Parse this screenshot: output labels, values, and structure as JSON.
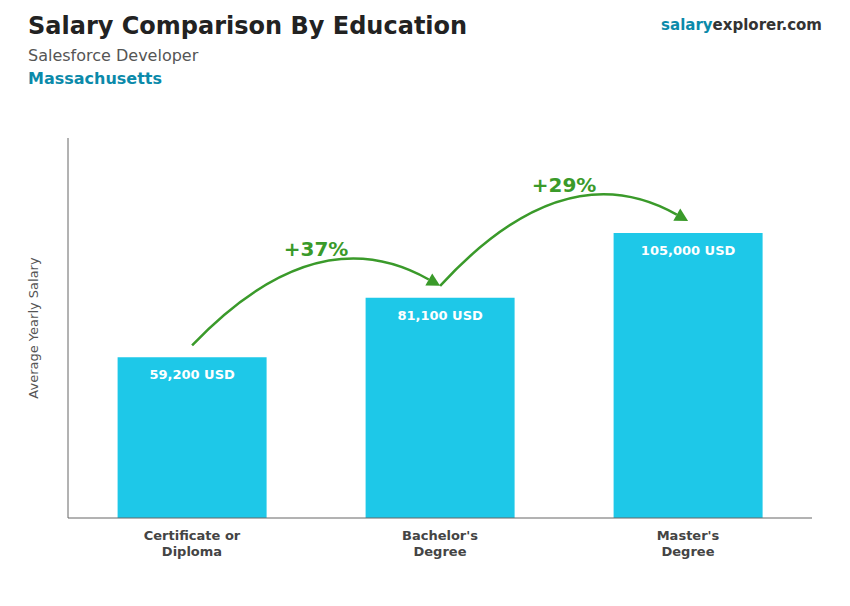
{
  "chart_data": {
    "type": "bar",
    "title": "Salary Comparison By Education",
    "subtitle": "Salesforce Developer",
    "location": "Massachusetts",
    "brand": [
      "salary",
      "explorer.com"
    ],
    "ylabel": "Average Yearly Salary",
    "categories": [
      "Certificate or\nDiploma",
      "Bachelor's\nDegree",
      "Master's\nDegree"
    ],
    "values": [
      59200,
      81100,
      105000
    ],
    "value_labels": [
      "59,200 USD",
      "81,100 USD",
      "105,000 USD"
    ],
    "color": "#1ec8e8",
    "ylim": [
      0,
      140000
    ],
    "data_labels": true,
    "tick_labels": "x",
    "grid": false,
    "annotations": [
      {
        "text": "+37%",
        "from": "Certificate or\nDiploma",
        "to": "Bachelor's\nDegree"
      },
      {
        "text": "+29%",
        "from": "Bachelor's\nDegree",
        "to": "Master's\nDegree"
      }
    ]
  }
}
